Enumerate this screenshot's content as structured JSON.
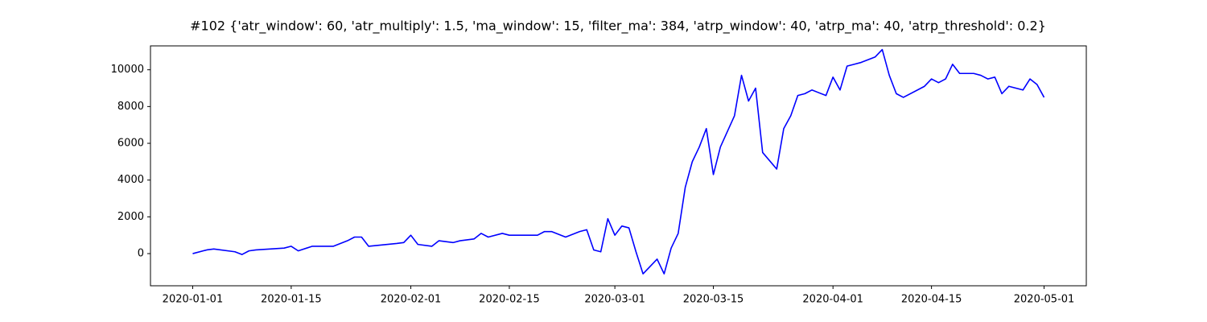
{
  "chart_data": {
    "type": "line",
    "title": "#102 {'atr_window': 60, 'atr_multiply': 1.5, 'ma_window': 15, 'filter_ma': 384, 'atrp_window': 40, 'atrp_ma': 40, 'atrp_threshold': 0.2}",
    "x": [
      "2020-01-01",
      "2020-01-03",
      "2020-01-04",
      "2020-01-07",
      "2020-01-08",
      "2020-01-09",
      "2020-01-10",
      "2020-01-14",
      "2020-01-15",
      "2020-01-16",
      "2020-01-18",
      "2020-01-21",
      "2020-01-23",
      "2020-01-24",
      "2020-01-25",
      "2020-01-26",
      "2020-01-30",
      "2020-01-31",
      "2020-02-01",
      "2020-02-02",
      "2020-02-04",
      "2020-02-05",
      "2020-02-07",
      "2020-02-08",
      "2020-02-10",
      "2020-02-11",
      "2020-02-12",
      "2020-02-14",
      "2020-02-15",
      "2020-02-19",
      "2020-02-20",
      "2020-02-21",
      "2020-02-23",
      "2020-02-25",
      "2020-02-26",
      "2020-02-27",
      "2020-02-28",
      "2020-02-29",
      "2020-03-01",
      "2020-03-02",
      "2020-03-03",
      "2020-03-04",
      "2020-03-05",
      "2020-03-06",
      "2020-03-07",
      "2020-03-08",
      "2020-03-09",
      "2020-03-10",
      "2020-03-11",
      "2020-03-12",
      "2020-03-13",
      "2020-03-14",
      "2020-03-15",
      "2020-03-16",
      "2020-03-18",
      "2020-03-19",
      "2020-03-20",
      "2020-03-21",
      "2020-03-22",
      "2020-03-24",
      "2020-03-25",
      "2020-03-26",
      "2020-03-27",
      "2020-03-28",
      "2020-03-29",
      "2020-03-31",
      "2020-04-01",
      "2020-04-02",
      "2020-04-03",
      "2020-04-04",
      "2020-04-05",
      "2020-04-07",
      "2020-04-08",
      "2020-04-09",
      "2020-04-10",
      "2020-04-11",
      "2020-04-14",
      "2020-04-15",
      "2020-04-16",
      "2020-04-17",
      "2020-04-18",
      "2020-04-19",
      "2020-04-21",
      "2020-04-22",
      "2020-04-23",
      "2020-04-24",
      "2020-04-25",
      "2020-04-26",
      "2020-04-28",
      "2020-04-29",
      "2020-04-30",
      "2020-05-01"
    ],
    "values": [
      0,
      200,
      250,
      100,
      -50,
      150,
      200,
      300,
      400,
      150,
      400,
      400,
      700,
      900,
      900,
      400,
      550,
      600,
      1000,
      500,
      400,
      700,
      600,
      700,
      800,
      1100,
      900,
      1100,
      1000,
      1000,
      1200,
      1200,
      900,
      1200,
      1300,
      200,
      100,
      1900,
      1000,
      1500,
      1400,
      100,
      -1100,
      -700,
      -300,
      -1100,
      300,
      1100,
      3600,
      5000,
      5800,
      6800,
      4300,
      5800,
      7500,
      9700,
      8300,
      9000,
      5500,
      4600,
      6800,
      7500,
      8600,
      8700,
      8900,
      8600,
      9600,
      8900,
      10200,
      10300,
      10400,
      10700,
      11100,
      9700,
      8700,
      8500,
      9100,
      9500,
      9300,
      9500,
      10300,
      9800,
      9800,
      9700,
      9500,
      9600,
      8700,
      9100,
      8900,
      9500,
      9200,
      8500
    ],
    "color": "#0000ff",
    "xlim": [
      "2019-12-26",
      "2020-05-07"
    ],
    "xticks": [
      "2020-01-01",
      "2020-01-15",
      "2020-02-01",
      "2020-02-15",
      "2020-03-01",
      "2020-03-15",
      "2020-04-01",
      "2020-04-15",
      "2020-05-01"
    ],
    "ylim": [
      -1750,
      11300
    ],
    "yticks": [
      0,
      2000,
      4000,
      6000,
      8000,
      10000
    ]
  }
}
